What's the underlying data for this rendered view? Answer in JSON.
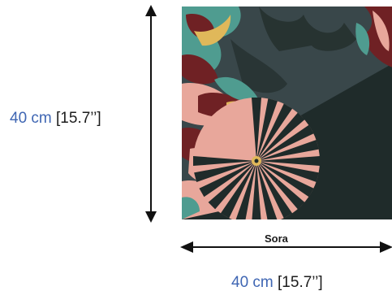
{
  "product": {
    "name": "Sora"
  },
  "dimensions": {
    "height": {
      "metric": "40 cm",
      "imperial": "[15.7’’]"
    },
    "width": {
      "metric": "40 cm",
      "imperial": "[15.7’’]"
    }
  },
  "artwork": {
    "description_icon": "abstract-floral-artwork",
    "colors": {
      "background_dark": "#1f2b2a",
      "slate": "#39474a",
      "teal": "#4f9c90",
      "pink": "#e8a79b",
      "maroon": "#6f2124",
      "mustard": "#e0b85a"
    }
  },
  "colors": {
    "metric_text": "#3f66b3",
    "imperial_text": "#1c1c1c",
    "arrows": "#111111"
  }
}
